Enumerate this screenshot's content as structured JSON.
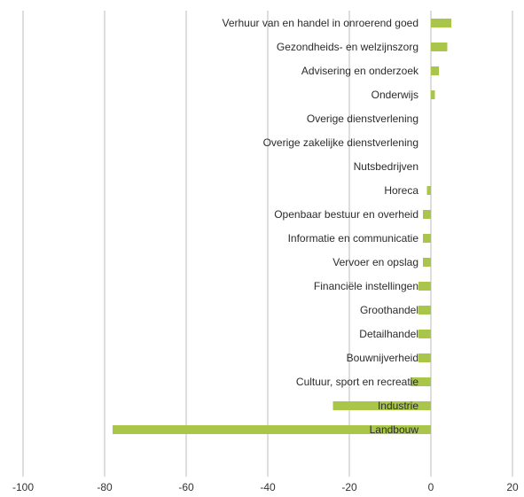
{
  "colors": {
    "bar": "#a9c64a",
    "grid": "#bdbdbd",
    "background": "#ffffff"
  },
  "chart_data": {
    "type": "bar",
    "orientation": "horizontal",
    "title": "",
    "xlabel": "",
    "ylabel": "",
    "xlim": [
      -100,
      20
    ],
    "x_ticks": [
      -100,
      -80,
      -60,
      -40,
      -20,
      0,
      20
    ],
    "grid": "vertical",
    "legend": "none",
    "categories": [
      "Verhuur van en handel in onroerend goed",
      "Gezondheids- en welzijnszorg",
      "Advisering en onderzoek",
      "Onderwijs",
      "Overige dienstverlening",
      "Overige zakelijke dienstverlening",
      "Nutsbedrijven",
      "Horeca",
      "Openbaar bestuur en overheid",
      "Informatie en communicatie",
      "Vervoer en opslag",
      "Financiële instellingen",
      "Groothandel",
      "Detailhandel",
      "Bouwnijverheid",
      "Cultuur, sport en recreatie",
      "Industrie",
      "Landbouw"
    ],
    "values": [
      5,
      4,
      2,
      1,
      0,
      0,
      0,
      -1,
      -2,
      -2,
      -2,
      -3,
      -3,
      -3,
      -3,
      -5,
      -24,
      -78
    ]
  }
}
